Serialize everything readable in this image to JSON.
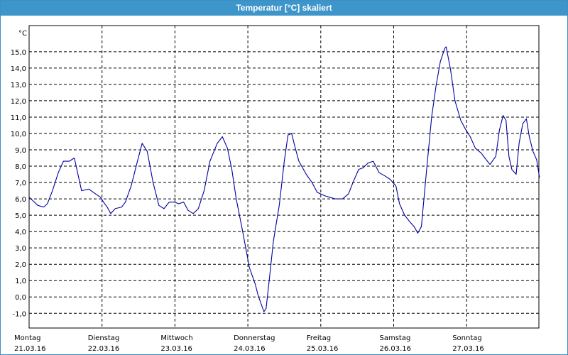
{
  "window": {
    "title": "Temperatur [°C] skaliert"
  },
  "chart_data": {
    "type": "line",
    "title": "Temperatur [°C] skaliert",
    "yunit": "°C",
    "ylim": [
      -1.9,
      16.6
    ],
    "xlim": [
      0,
      7
    ],
    "grid": true,
    "line_color": "#0000a0",
    "ytick_labels": [
      "-1,0",
      "0,0",
      "1,0",
      "2,0",
      "3,0",
      "4,0",
      "5,0",
      "6,0",
      "7,0",
      "8,0",
      "9,0",
      "10,0",
      "11,0",
      "12,0",
      "13,0",
      "14,0",
      "15,0"
    ],
    "ytick_values": [
      -1,
      0,
      1,
      2,
      3,
      4,
      5,
      6,
      7,
      8,
      9,
      10,
      11,
      12,
      13,
      14,
      15
    ],
    "x_days": [
      {
        "day": "Montag",
        "date": "21.03.16"
      },
      {
        "day": "Dienstag",
        "date": "22.03.16"
      },
      {
        "day": "Mittwoch",
        "date": "23.03.16"
      },
      {
        "day": "Donnerstag",
        "date": "24.03.16"
      },
      {
        "day": "Freitag",
        "date": "25.03.16"
      },
      {
        "day": "Samstag",
        "date": "26.03.16"
      },
      {
        "day": "Sonntag",
        "date": "27.03.16"
      }
    ],
    "series": [
      {
        "points": [
          [
            0.0,
            6.1
          ],
          [
            0.05,
            5.9
          ],
          [
            0.12,
            5.6
          ],
          [
            0.2,
            5.5
          ],
          [
            0.25,
            5.7
          ],
          [
            0.32,
            6.5
          ],
          [
            0.4,
            7.6
          ],
          [
            0.47,
            8.3
          ],
          [
            0.55,
            8.3
          ],
          [
            0.62,
            8.5
          ],
          [
            0.72,
            6.5
          ],
          [
            0.82,
            6.6
          ],
          [
            0.88,
            6.4
          ],
          [
            0.98,
            6.1
          ],
          [
            1.02,
            5.8
          ],
          [
            1.07,
            5.5
          ],
          [
            1.12,
            5.1
          ],
          [
            1.18,
            5.4
          ],
          [
            1.27,
            5.5
          ],
          [
            1.32,
            5.8
          ],
          [
            1.4,
            6.8
          ],
          [
            1.48,
            8.2
          ],
          [
            1.55,
            9.4
          ],
          [
            1.62,
            8.9
          ],
          [
            1.7,
            7.0
          ],
          [
            1.78,
            5.6
          ],
          [
            1.85,
            5.4
          ],
          [
            1.92,
            5.8
          ],
          [
            2.0,
            5.8
          ],
          [
            2.05,
            5.7
          ],
          [
            2.12,
            5.8
          ],
          [
            2.18,
            5.3
          ],
          [
            2.25,
            5.1
          ],
          [
            2.32,
            5.4
          ],
          [
            2.4,
            6.5
          ],
          [
            2.48,
            8.3
          ],
          [
            2.58,
            9.4
          ],
          [
            2.65,
            9.8
          ],
          [
            2.72,
            9.1
          ],
          [
            2.78,
            7.8
          ],
          [
            2.84,
            6.0
          ],
          [
            2.92,
            4.2
          ],
          [
            2.98,
            2.8
          ],
          [
            3.02,
            1.8
          ],
          [
            3.1,
            0.8
          ],
          [
            3.14,
            0.1
          ],
          [
            3.18,
            -0.4
          ],
          [
            3.22,
            -0.9
          ],
          [
            3.25,
            -0.7
          ],
          [
            3.3,
            1.3
          ],
          [
            3.35,
            3.4
          ],
          [
            3.43,
            5.6
          ],
          [
            3.5,
            8.3
          ],
          [
            3.55,
            9.9
          ],
          [
            3.6,
            10.0
          ],
          [
            3.65,
            9.1
          ],
          [
            3.7,
            8.3
          ],
          [
            3.8,
            7.5
          ],
          [
            3.88,
            7.0
          ],
          [
            3.95,
            6.4
          ],
          [
            4.05,
            6.2
          ],
          [
            4.12,
            6.1
          ],
          [
            4.2,
            6.0
          ],
          [
            4.3,
            6.0
          ],
          [
            4.38,
            6.3
          ],
          [
            4.45,
            7.1
          ],
          [
            4.52,
            7.8
          ],
          [
            4.58,
            7.9
          ],
          [
            4.65,
            8.2
          ],
          [
            4.72,
            8.3
          ],
          [
            4.8,
            7.6
          ],
          [
            4.88,
            7.4
          ],
          [
            4.95,
            7.2
          ],
          [
            5.03,
            6.8
          ],
          [
            5.08,
            5.7
          ],
          [
            5.15,
            5.0
          ],
          [
            5.22,
            4.6
          ],
          [
            5.28,
            4.3
          ],
          [
            5.33,
            3.9
          ],
          [
            5.38,
            4.3
          ],
          [
            5.45,
            7.7
          ],
          [
            5.52,
            11.0
          ],
          [
            5.58,
            12.9
          ],
          [
            5.64,
            14.4
          ],
          [
            5.7,
            15.2
          ],
          [
            5.72,
            15.3
          ],
          [
            5.78,
            13.9
          ],
          [
            5.84,
            12.0
          ],
          [
            5.92,
            10.8
          ],
          [
            5.98,
            10.3
          ],
          [
            6.05,
            9.8
          ],
          [
            6.12,
            9.1
          ],
          [
            6.2,
            8.8
          ],
          [
            6.25,
            8.5
          ],
          [
            6.32,
            8.1
          ],
          [
            6.4,
            8.6
          ],
          [
            6.45,
            10.2
          ],
          [
            6.5,
            11.1
          ],
          [
            6.54,
            10.8
          ],
          [
            6.58,
            8.6
          ],
          [
            6.62,
            7.8
          ],
          [
            6.68,
            7.5
          ],
          [
            6.72,
            9.4
          ],
          [
            6.77,
            10.6
          ],
          [
            6.82,
            10.9
          ],
          [
            6.86,
            9.8
          ],
          [
            6.91,
            8.9
          ],
          [
            6.96,
            8.4
          ],
          [
            7.0,
            7.3
          ]
        ]
      }
    ]
  }
}
